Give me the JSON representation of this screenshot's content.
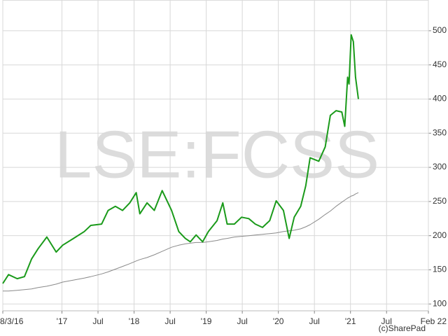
{
  "chart_data": {
    "type": "line",
    "watermark": "LSE:FCSS",
    "credit": "(c)SharePad",
    "x": [
      2016.18,
      2016.26,
      2016.38,
      2016.48,
      2016.58,
      2016.67,
      2016.79,
      2016.92,
      2017.01,
      2017.16,
      2017.31,
      2017.4,
      2017.55,
      2017.64,
      2017.74,
      2017.84,
      2017.94,
      2018.03,
      2018.08,
      2018.18,
      2018.28,
      2018.39,
      2018.52,
      2018.62,
      2018.71,
      2018.78,
      2018.86,
      2018.95,
      2019.03,
      2019.15,
      2019.23,
      2019.29,
      2019.39,
      2019.49,
      2019.59,
      2019.68,
      2019.78,
      2019.88,
      2019.97,
      2020.07,
      2020.15,
      2020.22,
      2020.31,
      2020.38,
      2020.44,
      2020.56,
      2020.65,
      2020.72,
      2020.8,
      2020.88,
      2020.92,
      2020.96,
      2020.98,
      2021.01,
      2021.04,
      2021.07,
      2021.11
    ],
    "series": [
      {
        "color": "#1a9a1a",
        "values": [
          130,
          143,
          137,
          140,
          166,
          181,
          198,
          176,
          186,
          196,
          206,
          215,
          217,
          237,
          243,
          237,
          248,
          263,
          232,
          248,
          237,
          266,
          237,
          206,
          196,
          191,
          201,
          191,
          206,
          222,
          248,
          217,
          217,
          227,
          225,
          217,
          212,
          222,
          251,
          237,
          196,
          227,
          243,
          273,
          314,
          309,
          330,
          376,
          383,
          381,
          360,
          432,
          422,
          494,
          484,
          432,
          400
        ]
      },
      {
        "color": "#8a8a8a",
        "values": [
          119,
          119,
          120,
          121,
          122,
          124,
          126,
          129,
          132,
          135,
          138,
          140,
          144,
          147,
          151,
          155,
          159,
          163,
          165,
          168,
          172,
          177,
          183,
          186,
          188,
          189,
          190,
          190,
          191,
          193,
          195,
          196,
          198,
          199,
          200,
          201,
          202,
          203,
          204,
          206,
          207,
          208,
          210,
          213,
          216,
          224,
          231,
          236,
          243,
          249,
          252,
          255,
          256,
          258,
          259,
          261,
          263
        ]
      }
    ],
    "xlim": [
      2016.18,
      2022.08
    ],
    "ylim": [
      90,
      545
    ],
    "xticks": [
      {
        "value": 2016.18,
        "label": "8/3/16"
      },
      {
        "value": 2017.0,
        "label": "'17"
      },
      {
        "value": 2017.5,
        "label": "Jul"
      },
      {
        "value": 2018.0,
        "label": "'18"
      },
      {
        "value": 2018.5,
        "label": "Jul"
      },
      {
        "value": 2019.0,
        "label": "'19"
      },
      {
        "value": 2019.5,
        "label": "Jul"
      },
      {
        "value": 2020.0,
        "label": "'20"
      },
      {
        "value": 2020.5,
        "label": "Jul"
      },
      {
        "value": 2021.0,
        "label": "'21"
      },
      {
        "value": 2021.5,
        "label": "Jul"
      },
      {
        "value": 2022.08,
        "label": "Feb 22"
      }
    ],
    "yticks": [
      100,
      150,
      200,
      250,
      300,
      350,
      400,
      450,
      500
    ],
    "grid": true
  }
}
